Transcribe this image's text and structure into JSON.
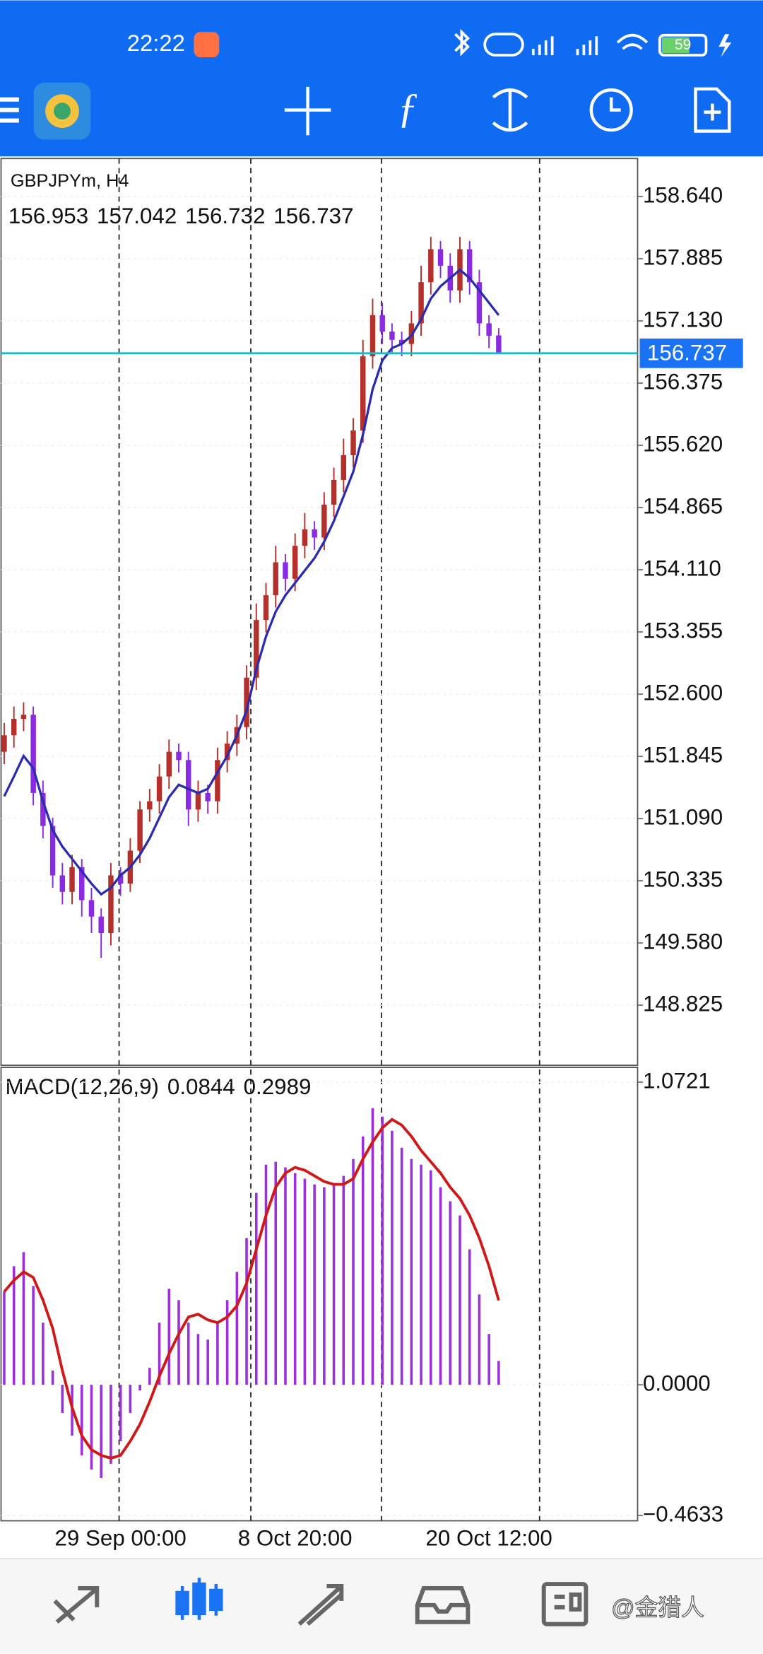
{
  "status_bar": {
    "time": "22:22",
    "battery": "59"
  },
  "watermark": "@金猎人",
  "chart_data": [
    {
      "type": "candlestick",
      "title": "GBPJPYm, H4",
      "categories": [
        null,
        null,
        null,
        null,
        null,
        null,
        null,
        null,
        null,
        null,
        null,
        null,
        "29 Sep 00:00",
        null,
        null,
        null,
        null,
        null,
        null,
        null,
        null,
        null,
        null,
        null,
        null,
        null,
        null,
        null,
        null,
        null,
        "8 Oct 20:00",
        null,
        null,
        null,
        null,
        null,
        null,
        null,
        null,
        null,
        null,
        null,
        null,
        null,
        null,
        null,
        null,
        null,
        null,
        null,
        "20 Oct 12:00",
        null
      ],
      "open": [
        151.9,
        152.1,
        152.3,
        152.35,
        151.4,
        151.0,
        150.4,
        150.2,
        150.5,
        150.1,
        149.9,
        149.7,
        150.4,
        150.3,
        150.7,
        151.2,
        151.3,
        151.6,
        151.9,
        151.8,
        151.2,
        151.4,
        151.3,
        151.8,
        152.0,
        152.2,
        152.8,
        153.5,
        153.8,
        154.2,
        154.0,
        154.4,
        154.6,
        154.5,
        154.9,
        155.2,
        155.5,
        155.8,
        156.7,
        157.2,
        157.0,
        156.9,
        156.85,
        157.1,
        157.6,
        158.0,
        157.8,
        157.5,
        158.0,
        157.6,
        157.1,
        156.953
      ],
      "high": [
        152.25,
        152.45,
        152.5,
        152.45,
        151.55,
        151.1,
        150.55,
        150.65,
        150.6,
        150.25,
        150.0,
        150.55,
        150.5,
        150.85,
        151.3,
        151.45,
        151.75,
        152.05,
        152.0,
        151.9,
        151.55,
        151.5,
        151.95,
        152.15,
        152.35,
        152.95,
        153.7,
        153.95,
        154.4,
        154.3,
        154.55,
        154.8,
        154.7,
        155.05,
        155.35,
        155.7,
        155.95,
        156.9,
        157.4,
        157.35,
        157.1,
        157.0,
        157.25,
        157.8,
        158.15,
        158.1,
        157.95,
        158.15,
        158.1,
        157.75,
        157.2,
        157.042
      ],
      "low": [
        151.75,
        151.95,
        152.15,
        151.25,
        150.85,
        150.25,
        150.05,
        150.05,
        149.9,
        149.7,
        149.4,
        149.55,
        150.15,
        150.2,
        150.55,
        151.05,
        151.15,
        151.45,
        151.65,
        151.0,
        151.05,
        151.15,
        151.15,
        151.65,
        151.85,
        152.05,
        152.65,
        153.35,
        153.65,
        153.85,
        153.85,
        154.25,
        154.35,
        154.35,
        154.75,
        155.05,
        155.35,
        155.65,
        156.55,
        156.85,
        156.75,
        156.7,
        156.7,
        156.95,
        157.45,
        157.65,
        157.35,
        157.35,
        157.45,
        156.95,
        156.8,
        156.732
      ],
      "close": [
        152.1,
        152.3,
        152.35,
        151.4,
        151.0,
        150.4,
        150.2,
        150.5,
        150.1,
        149.9,
        149.7,
        150.4,
        150.3,
        150.7,
        151.2,
        151.3,
        151.6,
        151.9,
        151.8,
        151.2,
        151.4,
        151.3,
        151.8,
        152.0,
        152.2,
        152.8,
        153.5,
        153.8,
        154.2,
        154.0,
        154.4,
        154.6,
        154.5,
        154.9,
        155.2,
        155.5,
        155.8,
        156.7,
        157.2,
        157.0,
        156.9,
        156.85,
        157.1,
        157.6,
        158.0,
        157.8,
        157.5,
        158.0,
        157.6,
        157.1,
        156.95,
        156.737
      ],
      "up_color": "#b5302a",
      "down_color": "#8a2be2",
      "moving_average": {
        "color": "#2b2bb0",
        "values": [
          151.36,
          151.6,
          151.85,
          151.7,
          151.3,
          150.95,
          150.75,
          150.6,
          150.45,
          150.3,
          150.17,
          150.25,
          150.4,
          150.5,
          150.65,
          150.85,
          151.1,
          151.35,
          151.5,
          151.45,
          151.4,
          151.45,
          151.65,
          151.85,
          152.1,
          152.4,
          152.9,
          153.3,
          153.6,
          153.8,
          153.95,
          154.1,
          154.25,
          154.45,
          154.7,
          155.0,
          155.3,
          155.75,
          156.3,
          156.65,
          156.8,
          156.85,
          156.95,
          157.15,
          157.4,
          157.55,
          157.65,
          157.75,
          157.65,
          157.5,
          157.35,
          157.2
        ]
      },
      "price_line_color": "#20b8c8",
      "ylim": [
        148.095,
        159.101
      ],
      "yticks": [
        {
          "value": 158.64,
          "label": "158.640"
        },
        {
          "value": 157.885,
          "label": "157.885"
        },
        {
          "value": 157.13,
          "label": "157.130"
        },
        {
          "value": 156.375,
          "label": "156.375"
        },
        {
          "value": 155.62,
          "label": "155.620"
        },
        {
          "value": 154.865,
          "label": "154.865"
        },
        {
          "value": 154.11,
          "label": "154.110"
        },
        {
          "value": 153.355,
          "label": "153.355"
        },
        {
          "value": 152.6,
          "label": "152.600"
        },
        {
          "value": 151.845,
          "label": "151.845"
        },
        {
          "value": 151.09,
          "label": "151.090"
        },
        {
          "value": 150.335,
          "label": "150.335"
        },
        {
          "value": 149.58,
          "label": "149.580"
        },
        {
          "value": 148.825,
          "label": "148.825"
        }
      ],
      "grid": true
    },
    {
      "type": "bar",
      "title": "MACD(12,26,9)",
      "color": "#9b30d9",
      "values": [
        0.33,
        0.42,
        0.47,
        0.35,
        0.22,
        0.05,
        -0.1,
        -0.18,
        -0.25,
        -0.3,
        -0.33,
        -0.28,
        -0.2,
        -0.1,
        -0.02,
        0.06,
        0.22,
        0.34,
        0.3,
        0.22,
        0.18,
        0.16,
        0.22,
        0.3,
        0.4,
        0.52,
        0.68,
        0.78,
        0.79,
        0.77,
        0.75,
        0.73,
        0.71,
        0.7,
        0.71,
        0.74,
        0.8,
        0.88,
        0.98,
        0.95,
        0.9,
        0.84,
        0.8,
        0.78,
        0.76,
        0.7,
        0.65,
        0.6,
        0.48,
        0.32,
        0.18,
        0.0844
      ],
      "signal": {
        "color": "#d01818",
        "values": [
          0.33,
          0.37,
          0.4,
          0.38,
          0.3,
          0.2,
          0.05,
          -0.08,
          -0.18,
          -0.23,
          -0.25,
          -0.26,
          -0.25,
          -0.2,
          -0.14,
          -0.06,
          0.03,
          0.11,
          0.18,
          0.24,
          0.25,
          0.23,
          0.22,
          0.24,
          0.28,
          0.36,
          0.48,
          0.6,
          0.7,
          0.75,
          0.77,
          0.76,
          0.74,
          0.72,
          0.71,
          0.71,
          0.73,
          0.8,
          0.86,
          0.91,
          0.94,
          0.92,
          0.88,
          0.83,
          0.79,
          0.75,
          0.7,
          0.66,
          0.6,
          0.52,
          0.42,
          0.2989
        ]
      },
      "ylim": [
        -0.4819,
        1.1244
      ],
      "yticks": [
        {
          "value": 1.0721,
          "label": "1.0721"
        },
        {
          "value": 0,
          "label": "0.0000"
        },
        {
          "value": -0.4633,
          "label": "−0.4633"
        }
      ]
    }
  ]
}
